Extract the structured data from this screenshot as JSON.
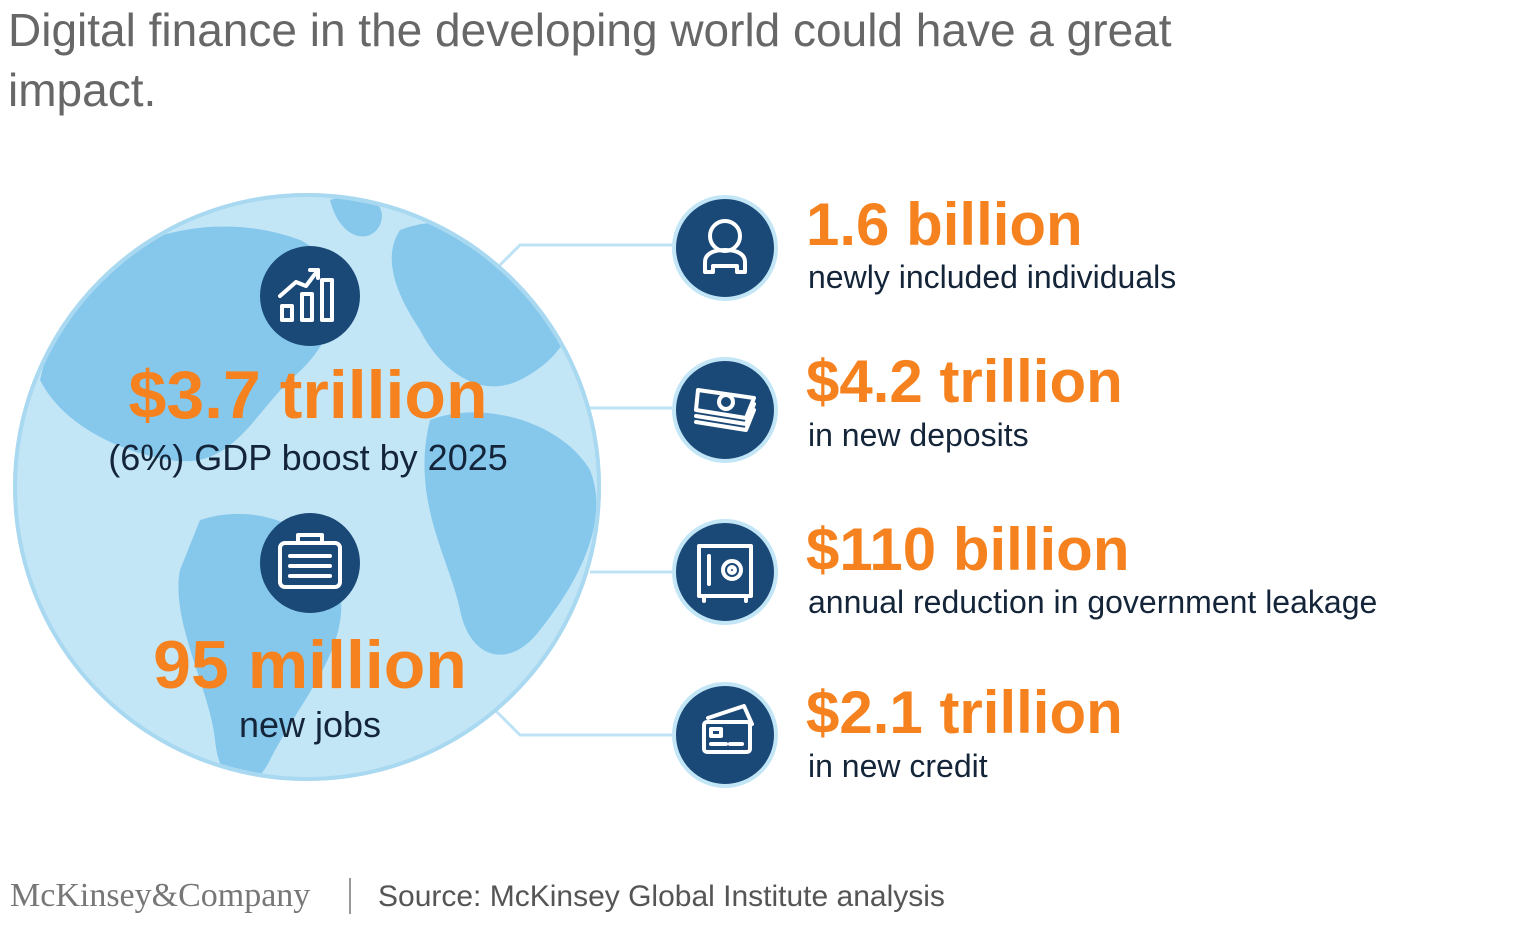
{
  "header": {
    "title": "Digital finance in the developing world could have a great impact."
  },
  "globe": {
    "items": [
      {
        "value": "$3.7 trillion",
        "label": "(6%) GDP boost by 2025"
      },
      {
        "value": "95 million",
        "label": "new jobs"
      }
    ]
  },
  "stats": [
    {
      "value": "1.6 billion",
      "label": "newly included individuals"
    },
    {
      "value": "$4.2 trillion",
      "label": "in new deposits"
    },
    {
      "value": "$110 billion",
      "label": "annual reduction in government leakage"
    },
    {
      "value": "$2.1 trillion",
      "label": "in new credit"
    }
  ],
  "footer": {
    "brand": "McKinsey&Company",
    "source": "Source: McKinsey Global Institute analysis"
  }
}
